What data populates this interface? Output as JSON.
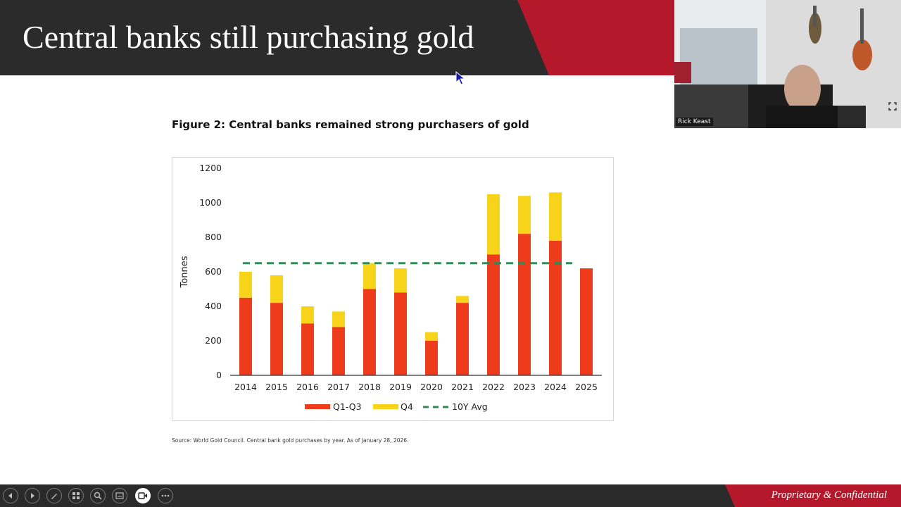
{
  "slide": {
    "title": "Central banks still purchasing gold",
    "figure_title": "Figure 2: Central banks remained strong purchasers of gold",
    "source": "Source: World Gold Council. Central bank gold purchases by year. As of January 28, 2026.",
    "footer": "Proprietary & Confidential"
  },
  "webcam": {
    "participant_name": "Rick Keast"
  },
  "controls": [
    {
      "name": "previous-slide-button",
      "icon": "chevron-left-icon"
    },
    {
      "name": "next-slide-button",
      "icon": "chevron-right-icon"
    },
    {
      "name": "pen-tool-button",
      "icon": "pen-icon"
    },
    {
      "name": "all-slides-button",
      "icon": "grid-icon"
    },
    {
      "name": "zoom-button",
      "icon": "magnifier-icon"
    },
    {
      "name": "subtitles-button",
      "icon": "screen-icon"
    },
    {
      "name": "camera-button",
      "icon": "camera-icon"
    },
    {
      "name": "more-options-button",
      "icon": "ellipsis-icon"
    }
  ],
  "colors": {
    "header_dark": "#2b2b2b",
    "brand_red": "#b5182b",
    "q1q3": "#ee3b1c",
    "q4": "#f7d31a",
    "avg_line": "#2e8b57"
  },
  "chart_data": {
    "type": "bar",
    "stacked": true,
    "categories": [
      "2014",
      "2015",
      "2016",
      "2017",
      "2018",
      "2019",
      "2020",
      "2021",
      "2022",
      "2023",
      "2024",
      "2025"
    ],
    "series": [
      {
        "name": "Q1-Q3",
        "color": "#ee3b1c",
        "values": [
          450,
          420,
          300,
          280,
          500,
          480,
          200,
          420,
          700,
          820,
          780,
          620
        ]
      },
      {
        "name": "Q4",
        "color": "#f7d31a",
        "values": [
          150,
          160,
          100,
          90,
          150,
          140,
          50,
          40,
          350,
          220,
          280,
          0
        ]
      }
    ],
    "reference_line": {
      "name": "10Y Avg",
      "value": 650,
      "color": "#2e8b57",
      "style": "dashed"
    },
    "ylabel": "Tonnes",
    "ylim": [
      0,
      1200
    ],
    "yticks": [
      0,
      200,
      400,
      600,
      800,
      1000,
      1200
    ],
    "grid": false,
    "legend_position": "bottom"
  }
}
